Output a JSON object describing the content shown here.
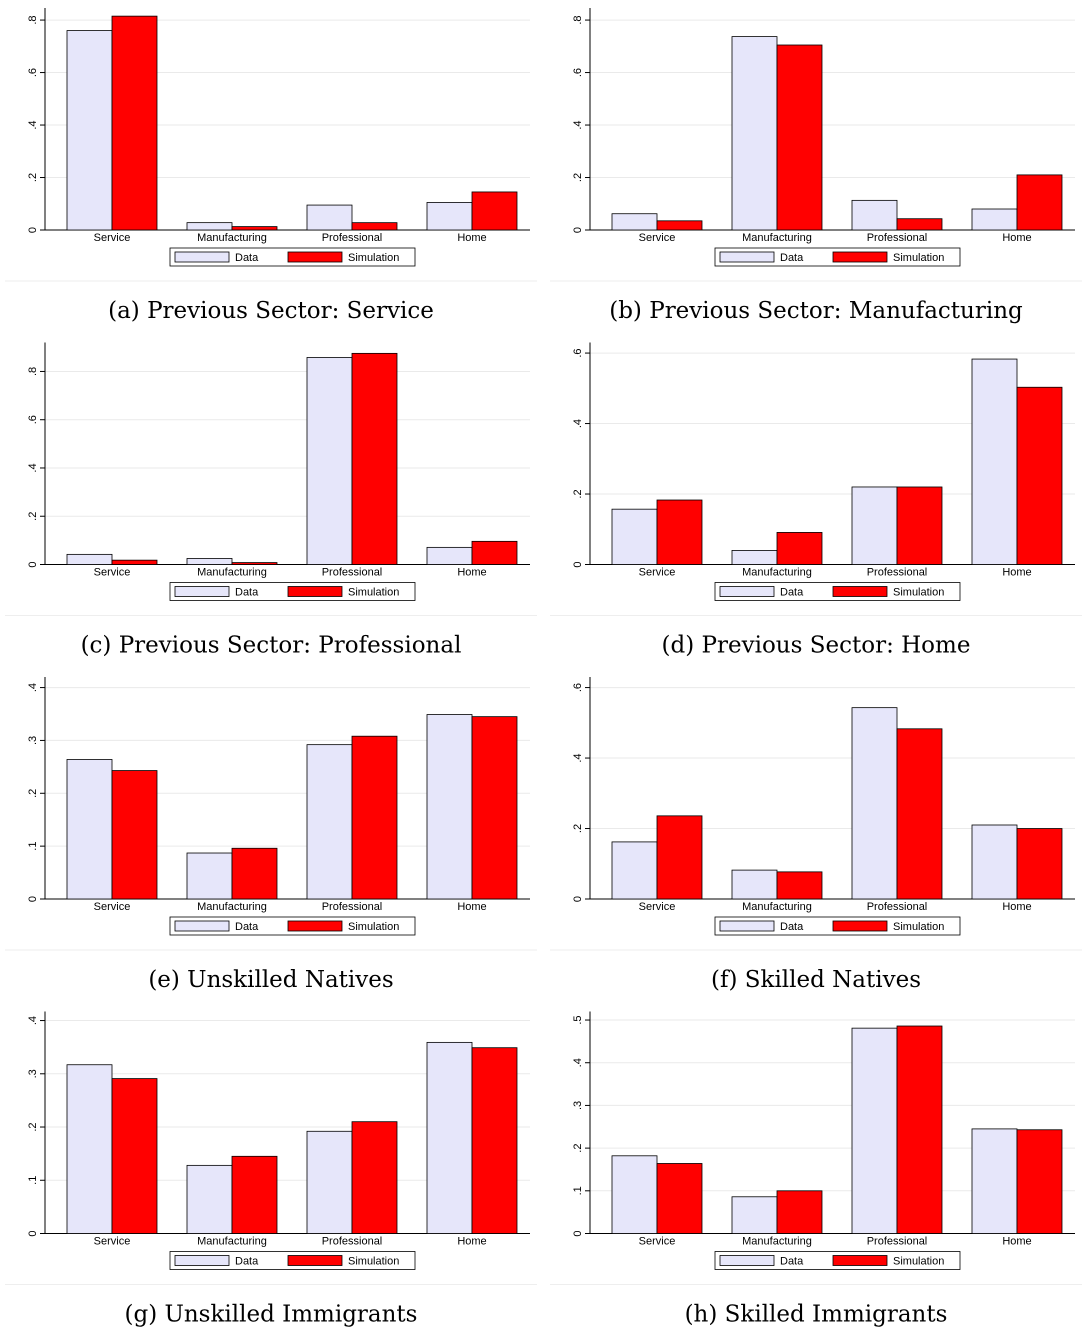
{
  "chart_data": [
    {
      "type": "bar",
      "caption": "(a) Previous Sector: Service",
      "categories": [
        "Service",
        "Manufacturing",
        "Professional",
        "Home"
      ],
      "series": [
        {
          "name": "Data",
          "color": "#e6e6fa",
          "values": [
            0.76,
            0.028,
            0.095,
            0.105
          ]
        },
        {
          "name": "Simulation",
          "color": "#ff0000",
          "values": [
            0.815,
            0.013,
            0.028,
            0.145
          ]
        }
      ],
      "ylim": [
        0,
        0.846
      ],
      "yticks": [
        0,
        {
          "value": 0.2,
          "label": ".2"
        },
        {
          "value": 0.4,
          "label": ".4"
        },
        {
          "value": 0.6,
          "label": ".6"
        },
        {
          "value": 0.8,
          "label": ".8"
        }
      ],
      "grid": true
    },
    {
      "type": "bar",
      "caption": "(b) Previous Sector: Manufacturing",
      "categories": [
        "Service",
        "Manufacturing",
        "Professional",
        "Home"
      ],
      "series": [
        {
          "name": "Data",
          "color": "#e6e6fa",
          "values": [
            0.062,
            0.737,
            0.113,
            0.08
          ]
        },
        {
          "name": "Simulation",
          "color": "#ff0000",
          "values": [
            0.035,
            0.705,
            0.043,
            0.21
          ]
        }
      ],
      "ylim": [
        0,
        0.846
      ],
      "yticks": [
        0,
        {
          "value": 0.2,
          "label": ".2"
        },
        {
          "value": 0.4,
          "label": ".4"
        },
        {
          "value": 0.6,
          "label": ".6"
        },
        {
          "value": 0.8,
          "label": ".8"
        }
      ],
      "grid": true
    },
    {
      "type": "bar",
      "caption": "(c) Previous Sector: Professional",
      "categories": [
        "Service",
        "Manufacturing",
        "Professional",
        "Home"
      ],
      "series": [
        {
          "name": "Data",
          "color": "#e6e6fa",
          "values": [
            0.042,
            0.025,
            0.858,
            0.071
          ]
        },
        {
          "name": "Simulation",
          "color": "#ff0000",
          "values": [
            0.018,
            0.008,
            0.875,
            0.096
          ]
        }
      ],
      "ylim": [
        0,
        0.92
      ],
      "yticks": [
        0,
        {
          "value": 0.2,
          "label": ".2"
        },
        {
          "value": 0.4,
          "label": ".4"
        },
        {
          "value": 0.6,
          "label": ".6"
        },
        {
          "value": 0.8,
          "label": ".8"
        }
      ],
      "grid": true
    },
    {
      "type": "bar",
      "caption": "(d) Previous Sector: Home",
      "categories": [
        "Service",
        "Manufacturing",
        "Professional",
        "Home"
      ],
      "series": [
        {
          "name": "Data",
          "color": "#e6e6fa",
          "values": [
            0.157,
            0.04,
            0.22,
            0.583
          ]
        },
        {
          "name": "Simulation",
          "color": "#ff0000",
          "values": [
            0.183,
            0.091,
            0.22,
            0.503
          ]
        }
      ],
      "ylim": [
        0,
        0.63
      ],
      "yticks": [
        0,
        {
          "value": 0.2,
          "label": ".2"
        },
        {
          "value": 0.4,
          "label": ".4"
        },
        {
          "value": 0.6,
          "label": ".6"
        }
      ],
      "grid": true
    },
    {
      "type": "bar",
      "caption": "(e) Unskilled Natives",
      "categories": [
        "Service",
        "Manufacturing",
        "Professional",
        "Home"
      ],
      "series": [
        {
          "name": "Data",
          "color": "#e6e6fa",
          "values": [
            0.264,
            0.087,
            0.292,
            0.349
          ]
        },
        {
          "name": "Simulation",
          "color": "#ff0000",
          "values": [
            0.243,
            0.096,
            0.308,
            0.345
          ]
        }
      ],
      "ylim": [
        0,
        0.42
      ],
      "yticks": [
        0,
        {
          "value": 0.1,
          "label": ".1"
        },
        {
          "value": 0.2,
          "label": ".2"
        },
        {
          "value": 0.3,
          "label": ".3"
        },
        {
          "value": 0.4,
          "label": ".4"
        }
      ],
      "grid": true
    },
    {
      "type": "bar",
      "caption": "(f) Skilled Natives",
      "categories": [
        "Service",
        "Manufacturing",
        "Professional",
        "Home"
      ],
      "series": [
        {
          "name": "Data",
          "color": "#e6e6fa",
          "values": [
            0.162,
            0.082,
            0.543,
            0.21
          ]
        },
        {
          "name": "Simulation",
          "color": "#ff0000",
          "values": [
            0.236,
            0.077,
            0.483,
            0.2
          ]
        }
      ],
      "ylim": [
        0,
        0.63
      ],
      "yticks": [
        0,
        {
          "value": 0.2,
          "label": ".2"
        },
        {
          "value": 0.4,
          "label": ".4"
        },
        {
          "value": 0.6,
          "label": ".6"
        }
      ],
      "grid": true
    },
    {
      "type": "bar",
      "caption": "(g) Unskilled Immigrants",
      "categories": [
        "Service",
        "Manufacturing",
        "Professional",
        "Home"
      ],
      "series": [
        {
          "name": "Data",
          "color": "#e6e6fa",
          "values": [
            0.317,
            0.128,
            0.192,
            0.359
          ]
        },
        {
          "name": "Simulation",
          "color": "#ff0000",
          "values": [
            0.291,
            0.145,
            0.21,
            0.349
          ]
        }
      ],
      "ylim": [
        0,
        0.417
      ],
      "yticks": [
        0,
        {
          "value": 0.1,
          "label": ".1"
        },
        {
          "value": 0.2,
          "label": ".2"
        },
        {
          "value": 0.3,
          "label": ".3"
        },
        {
          "value": 0.4,
          "label": ".4"
        }
      ],
      "grid": true
    },
    {
      "type": "bar",
      "caption": "(h) Skilled Immigrants",
      "categories": [
        "Service",
        "Manufacturing",
        "Professional",
        "Home"
      ],
      "series": [
        {
          "name": "Data",
          "color": "#e6e6fa",
          "values": [
            0.182,
            0.086,
            0.481,
            0.245
          ]
        },
        {
          "name": "Simulation",
          "color": "#ff0000",
          "values": [
            0.164,
            0.1,
            0.486,
            0.243
          ]
        }
      ],
      "ylim": [
        0,
        0.52
      ],
      "yticks": [
        0,
        {
          "value": 0.1,
          "label": ".1"
        },
        {
          "value": 0.2,
          "label": ".2"
        },
        {
          "value": 0.3,
          "label": ".3"
        },
        {
          "value": 0.4,
          "label": ".4"
        },
        {
          "value": 0.5,
          "label": ".5"
        }
      ],
      "grid": true
    }
  ]
}
